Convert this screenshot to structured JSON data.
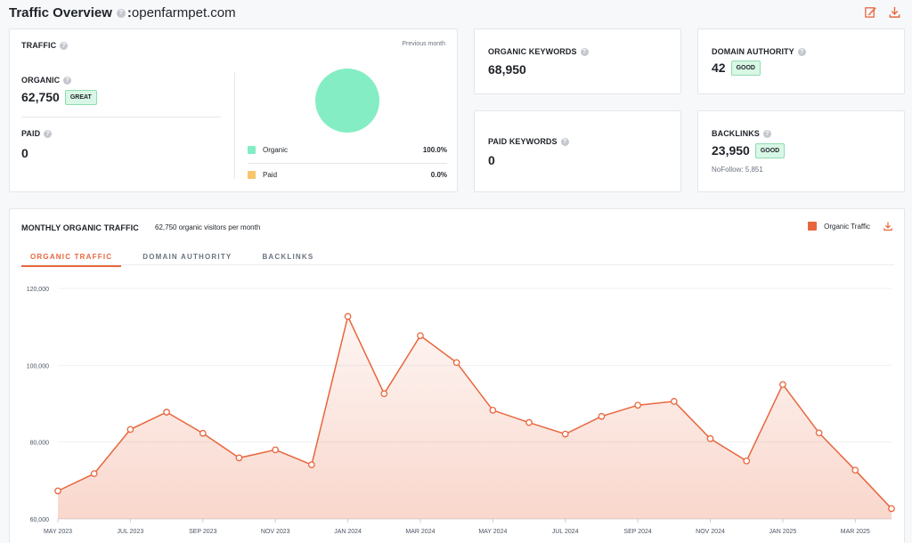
{
  "header": {
    "title": "Traffic Overview",
    "separator": ":",
    "domain": "openfarmpet.com",
    "icons": [
      "edit-icon",
      "download-icon"
    ]
  },
  "traffic": {
    "label": "TRAFFIC",
    "period": "Previous month",
    "organic_label": "ORGANIC",
    "organic_value": "62,750",
    "organic_badge": "GREAT",
    "paid_label": "PAID",
    "paid_value": "0",
    "legend": [
      {
        "name": "Organic",
        "pct": "100.0%",
        "color": "#84edc3",
        "share": 100
      },
      {
        "name": "Paid",
        "pct": "0.0%",
        "color": "#f7c56a",
        "share": 0
      }
    ]
  },
  "organic_keywords": {
    "label": "ORGANIC KEYWORDS",
    "value": "68,950"
  },
  "paid_keywords": {
    "label": "PAID KEYWORDS",
    "value": "0"
  },
  "domain_authority": {
    "label": "DOMAIN AUTHORITY",
    "value": "42",
    "badge": "GOOD"
  },
  "backlinks": {
    "label": "BACKLINKS",
    "value": "23,950",
    "badge": "GOOD",
    "nofollow": "NoFollow: 5,851"
  },
  "monthly": {
    "label": "MONTHLY ORGANIC TRAFFIC",
    "subtitle": "62,750 organic visitors per month",
    "legend_label": "Organic Traffic",
    "tabs": [
      "ORGANIC TRAFFIC",
      "DOMAIN AUTHORITY",
      "BACKLINKS"
    ],
    "active_tab": 0
  },
  "colors": {
    "accent": "#e8663d",
    "organic": "#84edc3",
    "paid": "#f7c56a",
    "good_badge": "#d9f7e6"
  },
  "chart_data": {
    "type": "area",
    "series": [
      {
        "name": "Organic Traffic",
        "values": [
          67300,
          71800,
          83300,
          87800,
          82300,
          75900,
          78000,
          74100,
          112700,
          92600,
          107700,
          100700,
          88300,
          85100,
          82100,
          86700,
          89600,
          90600,
          80900,
          75100,
          95000,
          82400,
          72700,
          62700
        ]
      }
    ],
    "x": [
      "MAY 2023",
      "JUN 2023",
      "JUL 2023",
      "AUG 2023",
      "SEP 2023",
      "OCT 2023",
      "NOV 2023",
      "DEC 2023",
      "JAN 2024",
      "FEB 2024",
      "MAR 2024",
      "APR 2024",
      "MAY 2024",
      "JUN 2024",
      "JUL 2024",
      "AUG 2024",
      "SEP 2024",
      "OCT 2024",
      "NOV 2024",
      "DEC 2024",
      "JAN 2025",
      "FEB 2025",
      "MAR 2025",
      "APR 2025"
    ],
    "x_tick_labels": [
      "MAY 2023",
      "JUL 2023",
      "SEP 2023",
      "NOV 2023",
      "JAN 2024",
      "MAR 2024",
      "MAY 2024",
      "JUL 2024",
      "SEP 2024",
      "NOV 2024",
      "JAN 2025",
      "MAR 2025"
    ],
    "y_tick_labels": [
      "60,000",
      "80,000",
      "100,000",
      "120,000"
    ],
    "y_ticks": [
      60000,
      80000,
      100000,
      120000
    ],
    "ylim": [
      60000,
      120000
    ],
    "grid": true,
    "legend": "top-right"
  }
}
